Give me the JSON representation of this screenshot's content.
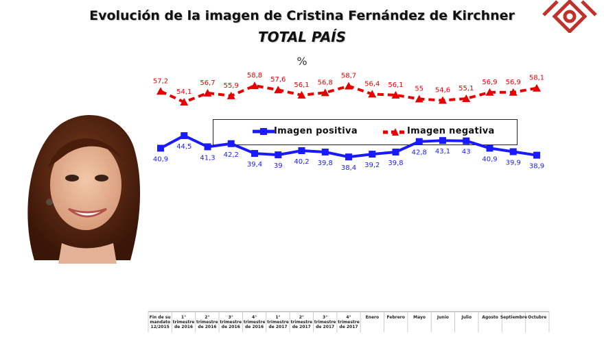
{
  "header": {
    "title": "Evolución de la imagen de Cristina Fernández de Kirchner",
    "subtitle": "TOTAL PAÍS",
    "unit": "%"
  },
  "colors": {
    "positive": "#1a1aff",
    "negative": "#e60000"
  },
  "chart_data": {
    "type": "line",
    "title": "Evolución de la imagen de Cristina Fernández de Kirchner",
    "subtitle": "TOTAL PAÍS",
    "ylabel": "%",
    "ylim": [
      30,
      65
    ],
    "categories": [
      [
        "Fin de su",
        "mandato",
        "12/2015"
      ],
      [
        "1°",
        "trimestre",
        "de 2016"
      ],
      [
        "2°",
        "trimestre",
        "de 2016"
      ],
      [
        "3°",
        "trimestre",
        "de 2016"
      ],
      [
        "4°",
        "trimestre",
        "de 2016"
      ],
      [
        "1°",
        "trimestre",
        "de 2017"
      ],
      [
        "2°",
        "trimestre",
        "de 2017"
      ],
      [
        "3°",
        "trimestre",
        "de 2017"
      ],
      [
        "4°",
        "trimestre",
        "de 2017"
      ],
      [
        "Enero"
      ],
      [
        "Febrero"
      ],
      [
        "Mayo"
      ],
      [
        "Junio"
      ],
      [
        "Julio"
      ],
      [
        "Agosto"
      ],
      [
        "Septiembre"
      ],
      [
        "Octubre"
      ]
    ],
    "series": [
      {
        "name": "Imagen positiva",
        "values": [
          40.9,
          44.5,
          41.3,
          42.2,
          39.4,
          39,
          40.2,
          39.8,
          38.4,
          39.2,
          39.8,
          42.8,
          43.1,
          43,
          40.9,
          39.9,
          38.9
        ],
        "labels": [
          "40,9",
          "44,5",
          "41,3",
          "42,2",
          "39,4",
          "39",
          "40,2",
          "39,8",
          "38,4",
          "39,2",
          "39,8",
          "42,8",
          "43,1",
          "43",
          "40,9",
          "39,9",
          "38,9"
        ]
      },
      {
        "name": "Imagen negativa",
        "values": [
          57.2,
          54.1,
          56.7,
          55.9,
          58.8,
          57.6,
          56.1,
          56.8,
          58.7,
          56.4,
          56.1,
          55,
          54.6,
          55.1,
          56.9,
          56.9,
          58.1
        ],
        "labels": [
          "57,2",
          "54,1",
          "56,7",
          "55,9",
          "58,8",
          "57,6",
          "56,1",
          "56,8",
          "58,7",
          "56,4",
          "56,1",
          "55",
          "54,6",
          "55,1",
          "56,9",
          "56,9",
          "58,1"
        ]
      }
    ],
    "legend": "top"
  }
}
